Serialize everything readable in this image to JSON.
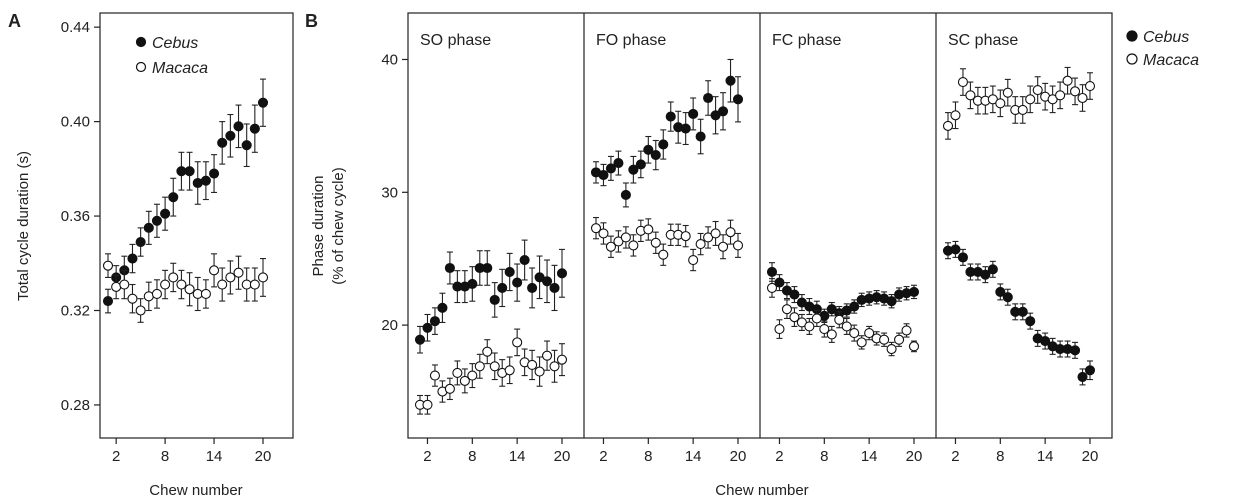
{
  "panel_labels": {
    "a": "A",
    "b": "B"
  },
  "chart_data": [
    {
      "type": "scatter",
      "panel": "A",
      "xlabel": "Chew number",
      "ylabel": "Total cycle duration (s)",
      "xlim": [
        1,
        20
      ],
      "ylim": [
        0.266,
        0.446
      ],
      "x_ticks": [
        2,
        8,
        14,
        20
      ],
      "y_ticks": [
        0.28,
        0.32,
        0.36,
        0.4,
        0.44
      ],
      "y_tick_labels": [
        "0.28",
        "0.32",
        "0.36",
        "0.40",
        "0.44"
      ],
      "x": [
        1,
        2,
        3,
        4,
        5,
        6,
        7,
        8,
        9,
        10,
        11,
        12,
        13,
        14,
        15,
        16,
        17,
        18,
        19,
        20
      ],
      "legend": {
        "placement": "top-left"
      },
      "series": [
        {
          "name": "Cebus",
          "marker": "filled",
          "values": [
            0.324,
            0.334,
            0.337,
            0.342,
            0.349,
            0.355,
            0.358,
            0.361,
            0.368,
            0.379,
            0.379,
            0.374,
            0.375,
            0.378,
            0.391,
            0.394,
            0.398,
            0.39,
            0.397,
            0.408
          ],
          "error": [
            0.005,
            0.005,
            0.006,
            0.006,
            0.006,
            0.007,
            0.007,
            0.007,
            0.008,
            0.008,
            0.008,
            0.009,
            0.008,
            0.008,
            0.009,
            0.009,
            0.009,
            0.009,
            0.01,
            0.01
          ]
        },
        {
          "name": "Macaca",
          "marker": "open",
          "values": [
            0.339,
            0.33,
            0.331,
            0.325,
            0.32,
            0.326,
            0.327,
            0.331,
            0.334,
            0.331,
            0.329,
            0.327,
            0.327,
            0.337,
            0.331,
            0.334,
            0.336,
            0.331,
            0.331,
            0.334
          ],
          "error": [
            0.005,
            0.005,
            0.006,
            0.006,
            0.005,
            0.006,
            0.006,
            0.006,
            0.006,
            0.006,
            0.007,
            0.007,
            0.006,
            0.007,
            0.007,
            0.007,
            0.007,
            0.007,
            0.007,
            0.008
          ]
        }
      ]
    },
    {
      "type": "scatter",
      "panel": "B",
      "xlabel": "Chew number",
      "ylabel": "Phase duration",
      "ylabel2": "(% of chew cycle)",
      "ylim": [
        11.5,
        43.5
      ],
      "y_ticks": [
        20,
        30,
        40
      ],
      "y_tick_labels": [
        "20",
        "30",
        "40"
      ],
      "x_ticks": [
        2,
        8,
        14,
        20
      ],
      "x_tick_labels": [
        "2",
        "8",
        "14",
        "20"
      ],
      "x": [
        1,
        2,
        3,
        4,
        5,
        6,
        7,
        8,
        9,
        10,
        11,
        12,
        13,
        14,
        15,
        16,
        17,
        18,
        19,
        20
      ],
      "legend": {
        "placement": "right",
        "entries": [
          {
            "name": "Cebus",
            "marker": "filled"
          },
          {
            "name": "Macaca",
            "marker": "open"
          }
        ]
      },
      "subpanels": [
        {
          "title": "SO phase",
          "series": [
            {
              "name": "Cebus",
              "marker": "filled",
              "values": [
                18.9,
                19.8,
                20.3,
                21.3,
                24.3,
                22.9,
                22.9,
                23.1,
                24.3,
                24.3,
                21.9,
                22.8,
                24.0,
                23.2,
                24.9,
                22.8,
                23.6,
                23.3,
                22.8,
                23.9
              ],
              "error": [
                1.0,
                1.0,
                1.0,
                1.1,
                1.2,
                1.2,
                1.2,
                1.3,
                1.3,
                1.3,
                1.3,
                1.4,
                1.4,
                1.4,
                1.5,
                1.5,
                1.6,
                1.6,
                1.7,
                1.8
              ]
            },
            {
              "name": "Macaca",
              "marker": "open",
              "values": [
                14.0,
                14.0,
                16.2,
                15.0,
                15.2,
                16.4,
                15.8,
                16.2,
                16.9,
                18.0,
                16.9,
                16.4,
                16.6,
                18.7,
                17.2,
                17.0,
                16.5,
                17.7,
                16.9,
                17.4
              ],
              "error": [
                0.7,
                0.7,
                0.8,
                0.8,
                0.8,
                0.9,
                0.9,
                0.9,
                0.9,
                0.9,
                1.0,
                1.0,
                1.0,
                1.0,
                1.0,
                1.1,
                1.1,
                1.1,
                1.2,
                1.2
              ]
            }
          ]
        },
        {
          "title": "FO phase",
          "series": [
            {
              "name": "Cebus",
              "marker": "filled",
              "values": [
                31.5,
                31.3,
                31.8,
                32.2,
                29.8,
                31.7,
                32.1,
                33.2,
                32.8,
                33.6,
                35.7,
                34.9,
                34.8,
                35.9,
                34.2,
                37.1,
                35.8,
                36.1,
                38.4,
                37.0
              ],
              "error": [
                0.8,
                0.8,
                0.9,
                0.9,
                0.9,
                1.0,
                1.0,
                1.0,
                1.1,
                1.1,
                1.1,
                1.2,
                1.2,
                1.2,
                1.3,
                1.3,
                1.4,
                1.4,
                1.6,
                1.7
              ]
            },
            {
              "name": "Macaca",
              "marker": "open",
              "values": [
                27.3,
                26.9,
                25.9,
                26.3,
                26.6,
                26.0,
                27.1,
                27.2,
                26.2,
                25.3,
                26.8,
                26.8,
                26.7,
                24.9,
                26.1,
                26.6,
                26.9,
                25.9,
                27.0,
                26.0
              ],
              "error": [
                0.8,
                0.8,
                0.8,
                0.8,
                0.8,
                0.8,
                0.8,
                0.8,
                0.8,
                0.8,
                0.8,
                0.8,
                0.8,
                0.8,
                0.8,
                0.8,
                0.9,
                0.9,
                0.9,
                0.9
              ]
            }
          ]
        },
        {
          "title": "FC phase",
          "series": [
            {
              "name": "Cebus",
              "marker": "filled",
              "values": [
                24.0,
                23.2,
                22.6,
                22.3,
                21.7,
                21.4,
                21.2,
                20.7,
                21.2,
                20.9,
                21.1,
                21.4,
                21.9,
                22.0,
                22.1,
                22.0,
                21.8,
                22.3,
                22.4,
                22.5
              ],
              "error": [
                0.7,
                0.6,
                0.6,
                0.6,
                0.6,
                0.6,
                0.6,
                0.5,
                0.5,
                0.5,
                0.5,
                0.5,
                0.5,
                0.5,
                0.5,
                0.5,
                0.5,
                0.5,
                0.5,
                0.5
              ]
            },
            {
              "name": "Macaca",
              "marker": "open",
              "values": [
                22.8,
                19.7,
                21.2,
                20.6,
                20.2,
                19.9,
                20.5,
                19.7,
                19.3,
                20.4,
                19.9,
                19.4,
                18.7,
                19.4,
                19.0,
                18.9,
                18.2,
                18.9,
                19.6,
                18.4
              ],
              "error": [
                0.7,
                0.7,
                0.7,
                0.7,
                0.6,
                0.6,
                0.6,
                0.6,
                0.6,
                0.6,
                0.6,
                0.6,
                0.5,
                0.5,
                0.5,
                0.5,
                0.5,
                0.5,
                0.5,
                0.4
              ]
            }
          ]
        },
        {
          "title": "SC phase",
          "series": [
            {
              "name": "Cebus",
              "marker": "filled",
              "values": [
                25.6,
                25.7,
                25.1,
                24.0,
                24.0,
                23.8,
                24.2,
                22.5,
                22.1,
                21.0,
                21.0,
                20.3,
                19.0,
                18.8,
                18.4,
                18.2,
                18.2,
                18.1,
                16.1,
                16.6
              ],
              "error": [
                0.6,
                0.6,
                0.6,
                0.6,
                0.6,
                0.6,
                0.6,
                0.6,
                0.6,
                0.6,
                0.6,
                0.6,
                0.6,
                0.6,
                0.6,
                0.6,
                0.6,
                0.6,
                0.6,
                0.7
              ]
            },
            {
              "name": "Macaca",
              "marker": "open",
              "values": [
                35.0,
                35.8,
                38.3,
                37.3,
                36.9,
                36.9,
                37.0,
                36.7,
                37.5,
                36.2,
                36.2,
                37.0,
                37.7,
                37.2,
                37.0,
                37.3,
                38.4,
                37.6,
                37.1,
                38.0
              ],
              "error": [
                1.0,
                1.0,
                1.0,
                1.0,
                1.0,
                1.0,
                1.0,
                1.0,
                1.0,
                1.0,
                1.0,
                1.0,
                1.0,
                1.0,
                1.0,
                1.0,
                1.0,
                1.0,
                1.0,
                1.0
              ]
            }
          ]
        }
      ]
    }
  ]
}
